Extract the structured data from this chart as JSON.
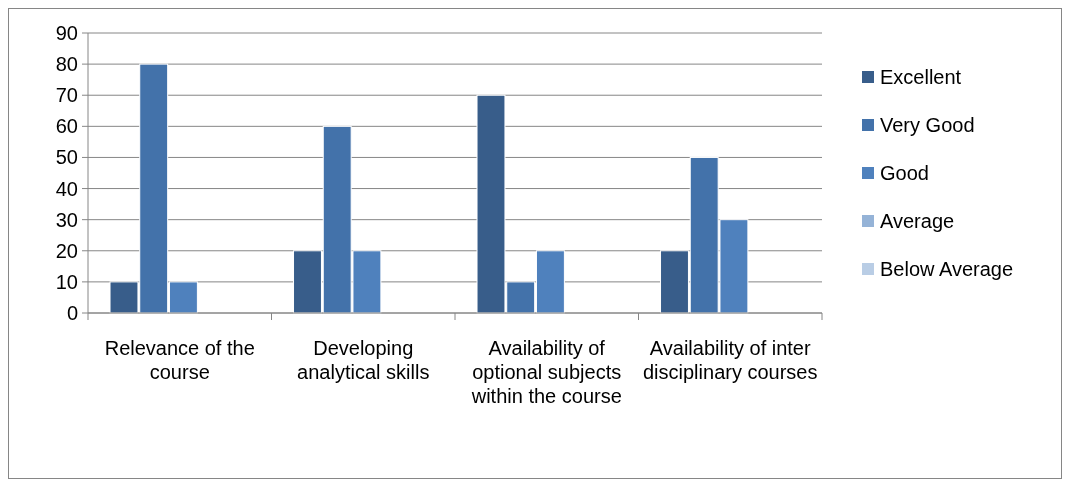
{
  "chart_data": {
    "type": "bar",
    "categories": [
      "Relevance of the course",
      "Developing analytical skills",
      "Availability of optional subjects within the course",
      "Availability of inter disciplinary courses"
    ],
    "series": [
      {
        "name": "Excellent",
        "color": "#385d8a",
        "values": [
          10,
          20,
          70,
          20
        ]
      },
      {
        "name": "Very Good",
        "color": "#4372aa",
        "values": [
          80,
          60,
          10,
          50
        ]
      },
      {
        "name": "Good",
        "color": "#4f81bd",
        "values": [
          10,
          20,
          20,
          30
        ]
      },
      {
        "name": "Average",
        "color": "#95b3d7",
        "values": [
          0,
          0,
          0,
          0
        ]
      },
      {
        "name": "Below Average",
        "color": "#b9cde5",
        "values": [
          0,
          0,
          0,
          0
        ]
      }
    ],
    "ylim": [
      0,
      90
    ],
    "yticks": [
      0,
      10,
      20,
      30,
      40,
      50,
      60,
      70,
      80,
      90
    ],
    "grid": "y",
    "legend": "right"
  }
}
